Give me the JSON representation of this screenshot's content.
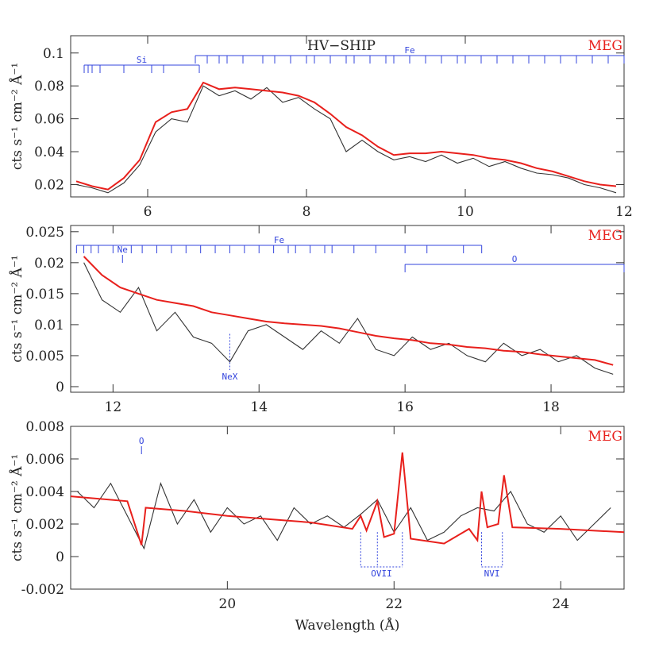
{
  "chart_data": [
    {
      "type": "line",
      "title": "HV−SHIP",
      "annotation": "MEG",
      "annotation_color": "#e8201c",
      "ylabel": "cts s⁻¹ cm⁻² Å⁻¹",
      "xlim": [
        5.03,
        12
      ],
      "ylim": [
        0.0125,
        0.1105
      ],
      "xticks": [
        6,
        8,
        10,
        12
      ],
      "yticks": [
        0.02,
        0.04,
        0.06,
        0.08,
        0.1
      ],
      "series": [
        {
          "color": "#333333",
          "x": [
            5.1,
            5.3,
            5.5,
            5.7,
            5.9,
            6.1,
            6.3,
            6.5,
            6.7,
            6.9,
            7.1,
            7.3,
            7.5,
            7.7,
            7.9,
            8.1,
            8.3,
            8.5,
            8.7,
            8.9,
            9.1,
            9.3,
            9.5,
            9.7,
            9.9,
            10.1,
            10.3,
            10.5,
            10.7,
            10.9,
            11.1,
            11.3,
            11.5,
            11.7,
            11.9
          ],
          "values": [
            0.02,
            0.018,
            0.015,
            0.021,
            0.032,
            0.052,
            0.06,
            0.058,
            0.08,
            0.074,
            0.077,
            0.072,
            0.079,
            0.07,
            0.073,
            0.066,
            0.06,
            0.04,
            0.047,
            0.04,
            0.035,
            0.037,
            0.034,
            0.038,
            0.033,
            0.036,
            0.031,
            0.034,
            0.03,
            0.027,
            0.026,
            0.024,
            0.02,
            0.018,
            0.015
          ]
        },
        {
          "color": "#e8201c",
          "x": [
            5.1,
            5.3,
            5.5,
            5.7,
            5.9,
            6.1,
            6.3,
            6.5,
            6.7,
            6.9,
            7.1,
            7.3,
            7.5,
            7.7,
            7.9,
            8.1,
            8.3,
            8.5,
            8.7,
            8.9,
            9.1,
            9.3,
            9.5,
            9.7,
            9.9,
            10.1,
            10.3,
            10.5,
            10.7,
            10.9,
            11.1,
            11.3,
            11.5,
            11.7,
            11.9
          ],
          "values": [
            0.022,
            0.019,
            0.017,
            0.024,
            0.035,
            0.058,
            0.064,
            0.066,
            0.082,
            0.078,
            0.079,
            0.078,
            0.077,
            0.076,
            0.074,
            0.07,
            0.063,
            0.055,
            0.05,
            0.043,
            0.038,
            0.039,
            0.039,
            0.04,
            0.039,
            0.038,
            0.036,
            0.035,
            0.033,
            0.03,
            0.028,
            0.025,
            0.022,
            0.02,
            0.019
          ]
        }
      ],
      "line_ids": [
        {
          "label": "Fe",
          "style": "bracket",
          "color": "#3344dd",
          "positions": [
            6.6,
            6.75,
            6.9,
            7.0,
            7.2,
            7.45,
            7.6,
            7.8,
            8.0,
            8.1,
            8.3,
            8.5,
            8.6,
            8.8,
            9.0,
            9.1,
            9.3,
            9.5,
            9.7,
            9.9,
            10.0,
            10.2,
            10.4,
            10.6,
            10.8,
            11.0,
            11.2,
            11.4,
            11.6,
            11.8,
            12.0
          ]
        },
        {
          "label": "Si",
          "style": "bracket",
          "color": "#3344dd",
          "positions": [
            5.2,
            5.25,
            5.3,
            5.4,
            5.7,
            6.05,
            6.2,
            6.65
          ]
        }
      ]
    },
    {
      "type": "line",
      "annotation": "MEG",
      "annotation_color": "#e8201c",
      "ylabel": "cts s⁻¹ cm⁻² Å⁻¹",
      "xlim": [
        11.42,
        19
      ],
      "ylim": [
        -0.0009,
        0.026
      ],
      "xticks": [
        12,
        14,
        16,
        18
      ],
      "yticks": [
        0,
        0.005,
        0.01,
        0.015,
        0.02,
        0.025
      ],
      "series": [
        {
          "color": "#333333",
          "x": [
            11.6,
            11.85,
            12.1,
            12.35,
            12.6,
            12.85,
            13.1,
            13.35,
            13.6,
            13.85,
            14.1,
            14.35,
            14.6,
            14.85,
            15.1,
            15.35,
            15.6,
            15.85,
            16.1,
            16.35,
            16.6,
            16.85,
            17.1,
            17.35,
            17.6,
            17.85,
            18.1,
            18.35,
            18.6,
            18.85
          ],
          "values": [
            0.02,
            0.014,
            0.012,
            0.016,
            0.009,
            0.012,
            0.008,
            0.007,
            0.004,
            0.009,
            0.01,
            0.008,
            0.006,
            0.009,
            0.007,
            0.011,
            0.006,
            0.005,
            0.008,
            0.006,
            0.007,
            0.005,
            0.004,
            0.007,
            0.005,
            0.006,
            0.004,
            0.005,
            0.003,
            0.002
          ]
        },
        {
          "color": "#e8201c",
          "x": [
            11.6,
            11.85,
            12.1,
            12.35,
            12.6,
            12.85,
            13.1,
            13.35,
            13.6,
            13.85,
            14.1,
            14.35,
            14.6,
            14.85,
            15.1,
            15.35,
            15.6,
            15.85,
            16.1,
            16.35,
            16.6,
            16.85,
            17.1,
            17.35,
            17.6,
            17.85,
            18.1,
            18.35,
            18.6,
            18.85
          ],
          "values": [
            0.021,
            0.018,
            0.016,
            0.015,
            0.014,
            0.0135,
            0.013,
            0.012,
            0.0115,
            0.011,
            0.0105,
            0.0102,
            0.01,
            0.0098,
            0.0094,
            0.0088,
            0.0082,
            0.0078,
            0.0075,
            0.007,
            0.0068,
            0.0064,
            0.0062,
            0.0058,
            0.0056,
            0.0052,
            0.0049,
            0.0046,
            0.0043,
            0.0035
          ]
        }
      ],
      "line_ids": [
        {
          "label": "Fe",
          "style": "bracket",
          "color": "#3344dd",
          "positions": [
            11.5,
            11.6,
            11.7,
            11.8,
            12.0,
            12.25,
            12.4,
            12.6,
            12.8,
            13.0,
            13.2,
            13.4,
            13.6,
            13.8,
            14.0,
            14.2,
            14.4,
            14.5,
            14.7,
            14.9,
            15.0,
            15.3,
            15.6,
            16.0,
            16.3,
            16.8,
            17.05
          ]
        },
        {
          "label": "Ne",
          "style": "bracket",
          "color": "#3344dd",
          "positions": [
            12.13
          ]
        },
        {
          "label": "O",
          "style": "bracket",
          "color": "#3344dd",
          "positions": [
            16.0,
            19.0
          ]
        },
        {
          "label": "NeX",
          "style": "dotted",
          "color": "#3344dd",
          "positions": [
            13.6
          ]
        }
      ]
    },
    {
      "type": "line",
      "annotation": "MEG",
      "annotation_color": "#e8201c",
      "ylabel": "cts s⁻¹ cm⁻² Å⁻¹",
      "xlabel": "Wavelength (Å)",
      "xlim": [
        18.12,
        24.76
      ],
      "ylim": [
        -0.002,
        0.008
      ],
      "xticks": [
        20,
        22,
        24
      ],
      "yticks": [
        -0.002,
        0,
        0.002,
        0.004,
        0.006,
        0.008
      ],
      "series": [
        {
          "color": "#333333",
          "x": [
            18.2,
            18.4,
            18.6,
            18.8,
            19.0,
            19.2,
            19.4,
            19.6,
            19.8,
            20.0,
            20.2,
            20.4,
            20.6,
            20.8,
            21.0,
            21.2,
            21.4,
            21.6,
            21.8,
            22.0,
            22.2,
            22.4,
            22.6,
            22.8,
            23.0,
            23.2,
            23.4,
            23.6,
            23.8,
            24.0,
            24.2,
            24.4,
            24.6
          ],
          "values": [
            0.004,
            0.003,
            0.0045,
            0.0025,
            0.0005,
            0.0045,
            0.002,
            0.0035,
            0.0015,
            0.003,
            0.002,
            0.0025,
            0.001,
            0.003,
            0.002,
            0.0025,
            0.0018,
            0.0026,
            0.0035,
            0.0015,
            0.003,
            0.001,
            0.0015,
            0.0025,
            0.003,
            0.0028,
            0.004,
            0.002,
            0.0015,
            0.0025,
            0.001,
            0.002,
            0.003
          ]
        },
        {
          "color": "#e8201c",
          "x": [
            18.12,
            18.8,
            18.92,
            18.97,
            19.02,
            19.5,
            20.0,
            20.5,
            21.0,
            21.5,
            21.6,
            21.67,
            21.8,
            21.88,
            22.0,
            22.1,
            22.2,
            22.6,
            22.9,
            23.0,
            23.05,
            23.12,
            23.25,
            23.32,
            23.42,
            24.0,
            24.76
          ],
          "values": [
            0.0037,
            0.0034,
            0.0015,
            0.0007,
            0.003,
            0.0028,
            0.0025,
            0.0023,
            0.0021,
            0.0017,
            0.0025,
            0.0016,
            0.0034,
            0.0012,
            0.0014,
            0.0064,
            0.0011,
            0.0008,
            0.0017,
            0.001,
            0.004,
            0.0018,
            0.002,
            0.005,
            0.0018,
            0.0017,
            0.0015
          ]
        }
      ],
      "line_ids": [
        {
          "label": "O",
          "style": "bracket",
          "color": "#3344dd",
          "positions": [
            18.97
          ]
        },
        {
          "label": "OVII",
          "style": "dotted",
          "color": "#3344dd",
          "positions": [
            21.6,
            21.8,
            22.1
          ]
        },
        {
          "label": "NVI",
          "style": "dotted",
          "color": "#3344dd",
          "positions": [
            23.05,
            23.3
          ]
        }
      ]
    }
  ]
}
